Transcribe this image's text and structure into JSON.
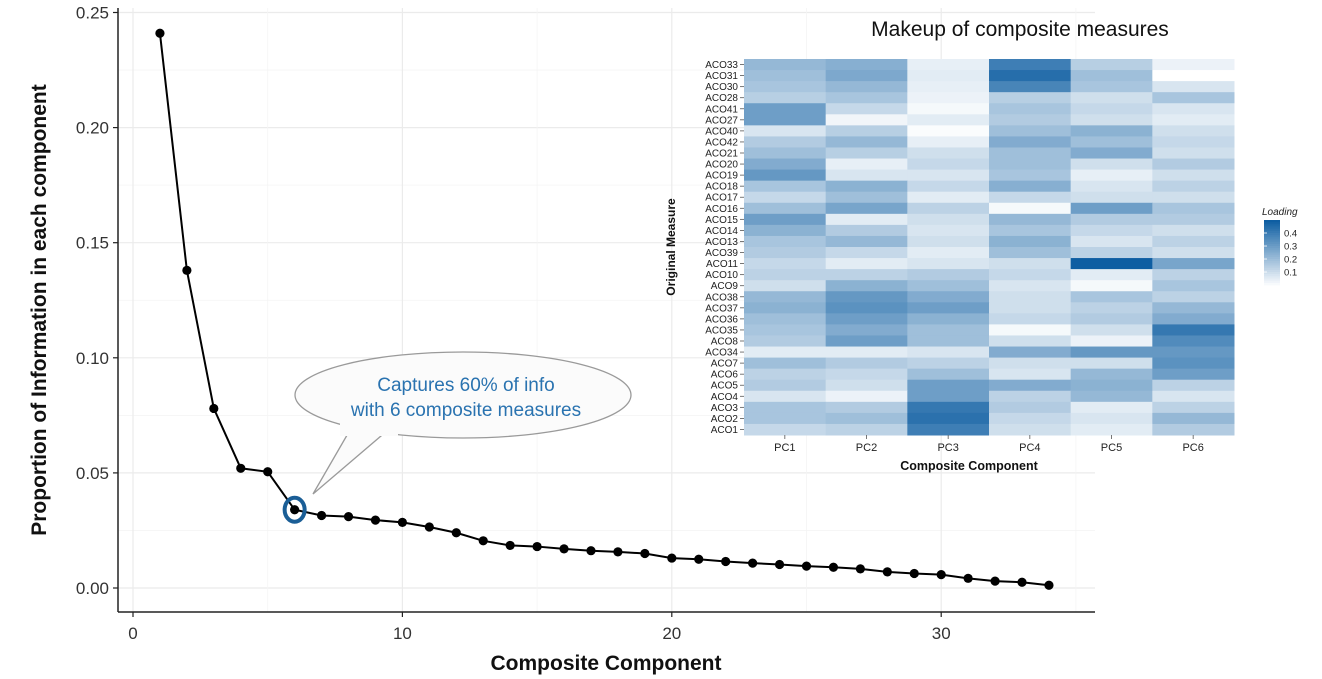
{
  "chart_data": [
    {
      "type": "line",
      "xlabel": "Composite Component",
      "ylabel": "Proportion of Information in each component",
      "xlim": [
        0,
        35
      ],
      "ylim": [
        0,
        0.25
      ],
      "xticks": [
        0,
        10,
        20,
        30
      ],
      "yticks": [
        "0.00",
        "0.05",
        "0.10",
        "0.15",
        "0.20",
        "0.25"
      ],
      "grid": true,
      "x": [
        1,
        2,
        3,
        4,
        5,
        6,
        7,
        8,
        9,
        10,
        11,
        12,
        13,
        14,
        15,
        16,
        17,
        18,
        19,
        20,
        21,
        22,
        23,
        24,
        25,
        26,
        27,
        28,
        29,
        30,
        31,
        32,
        33,
        34
      ],
      "y": [
        0.241,
        0.138,
        0.078,
        0.052,
        0.0505,
        0.034,
        0.0315,
        0.031,
        0.0295,
        0.0285,
        0.0265,
        0.024,
        0.0205,
        0.0185,
        0.018,
        0.017,
        0.0162,
        0.0157,
        0.015,
        0.013,
        0.0125,
        0.0115,
        0.0108,
        0.0102,
        0.0095,
        0.009,
        0.0083,
        0.007,
        0.0063,
        0.0058,
        0.0042,
        0.003,
        0.0025,
        0.0012
      ],
      "highlight_x": 6,
      "highlight_color": "#1a5e96",
      "callout": "Captures 60% of info\nwith 6 composite measures",
      "callout_color": "#2a73b0"
    },
    {
      "type": "heatmap",
      "title": "Makeup of composite measures",
      "xlabel": "Composite Component",
      "ylabel": "Original Measure",
      "x": [
        "PC1",
        "PC2",
        "PC3",
        "PC4",
        "PC5",
        "PC6"
      ],
      "y": [
        "ACO33",
        "ACO31",
        "ACO30",
        "ACO28",
        "ACO41",
        "ACO27",
        "ACO40",
        "ACO42",
        "ACO21",
        "ACO20",
        "ACO19",
        "ACO18",
        "ACO17",
        "ACO16",
        "ACO15",
        "ACO14",
        "ACO13",
        "ACO39",
        "ACO11",
        "ACO10",
        "ACO9",
        "ACO38",
        "ACO37",
        "ACO36",
        "ACO35",
        "ACO8",
        "ACO34",
        "ACO7",
        "ACO6",
        "ACO5",
        "ACO4",
        "ACO3",
        "ACO2",
        "ACO1"
      ],
      "values": [
        [
          0.22,
          0.25,
          0.05,
          0.4,
          0.15,
          0.04
        ],
        [
          0.2,
          0.27,
          0.06,
          0.45,
          0.2,
          0.0
        ],
        [
          0.18,
          0.22,
          0.05,
          0.38,
          0.18,
          0.08
        ],
        [
          0.15,
          0.18,
          0.04,
          0.15,
          0.1,
          0.18
        ],
        [
          0.3,
          0.12,
          0.02,
          0.18,
          0.12,
          0.08
        ],
        [
          0.3,
          0.03,
          0.06,
          0.16,
          0.1,
          0.06
        ],
        [
          0.08,
          0.15,
          0.01,
          0.2,
          0.24,
          0.1
        ],
        [
          0.16,
          0.22,
          0.05,
          0.26,
          0.2,
          0.12
        ],
        [
          0.2,
          0.15,
          0.1,
          0.2,
          0.26,
          0.1
        ],
        [
          0.26,
          0.05,
          0.12,
          0.2,
          0.1,
          0.16
        ],
        [
          0.32,
          0.08,
          0.08,
          0.18,
          0.05,
          0.1
        ],
        [
          0.18,
          0.24,
          0.12,
          0.25,
          0.08,
          0.14
        ],
        [
          0.12,
          0.2,
          0.06,
          0.12,
          0.1,
          0.1
        ],
        [
          0.2,
          0.28,
          0.14,
          0.02,
          0.3,
          0.18
        ],
        [
          0.3,
          0.06,
          0.1,
          0.22,
          0.16,
          0.16
        ],
        [
          0.24,
          0.16,
          0.08,
          0.18,
          0.12,
          0.1
        ],
        [
          0.18,
          0.22,
          0.1,
          0.24,
          0.08,
          0.14
        ],
        [
          0.16,
          0.12,
          0.06,
          0.2,
          0.14,
          0.1
        ],
        [
          0.12,
          0.06,
          0.08,
          0.1,
          0.5,
          0.28
        ],
        [
          0.14,
          0.14,
          0.16,
          0.12,
          0.06,
          0.14
        ],
        [
          0.1,
          0.24,
          0.2,
          0.08,
          0.02,
          0.18
        ],
        [
          0.22,
          0.32,
          0.26,
          0.1,
          0.18,
          0.14
        ],
        [
          0.24,
          0.34,
          0.3,
          0.1,
          0.14,
          0.22
        ],
        [
          0.2,
          0.3,
          0.24,
          0.12,
          0.16,
          0.26
        ],
        [
          0.18,
          0.26,
          0.2,
          0.02,
          0.1,
          0.42
        ],
        [
          0.16,
          0.3,
          0.2,
          0.1,
          0.04,
          0.36
        ],
        [
          0.06,
          0.06,
          0.08,
          0.26,
          0.32,
          0.32
        ],
        [
          0.2,
          0.16,
          0.14,
          0.1,
          0.1,
          0.34
        ],
        [
          0.14,
          0.12,
          0.2,
          0.08,
          0.22,
          0.3
        ],
        [
          0.16,
          0.1,
          0.3,
          0.26,
          0.24,
          0.14
        ],
        [
          0.08,
          0.04,
          0.3,
          0.14,
          0.22,
          0.08
        ],
        [
          0.18,
          0.16,
          0.42,
          0.16,
          0.06,
          0.14
        ],
        [
          0.18,
          0.2,
          0.44,
          0.12,
          0.08,
          0.22
        ],
        [
          0.12,
          0.14,
          0.4,
          0.1,
          0.06,
          0.16
        ]
      ],
      "legend_title": "Loading",
      "legend_ticks": [
        "0.4",
        "0.3",
        "0.2",
        "0.1"
      ],
      "legend_tick_values": [
        0.4,
        0.3,
        0.2,
        0.1
      ],
      "color_low": "#ffffff",
      "color_high": "#0e5ea2",
      "value_range": [
        0,
        0.5
      ]
    }
  ]
}
